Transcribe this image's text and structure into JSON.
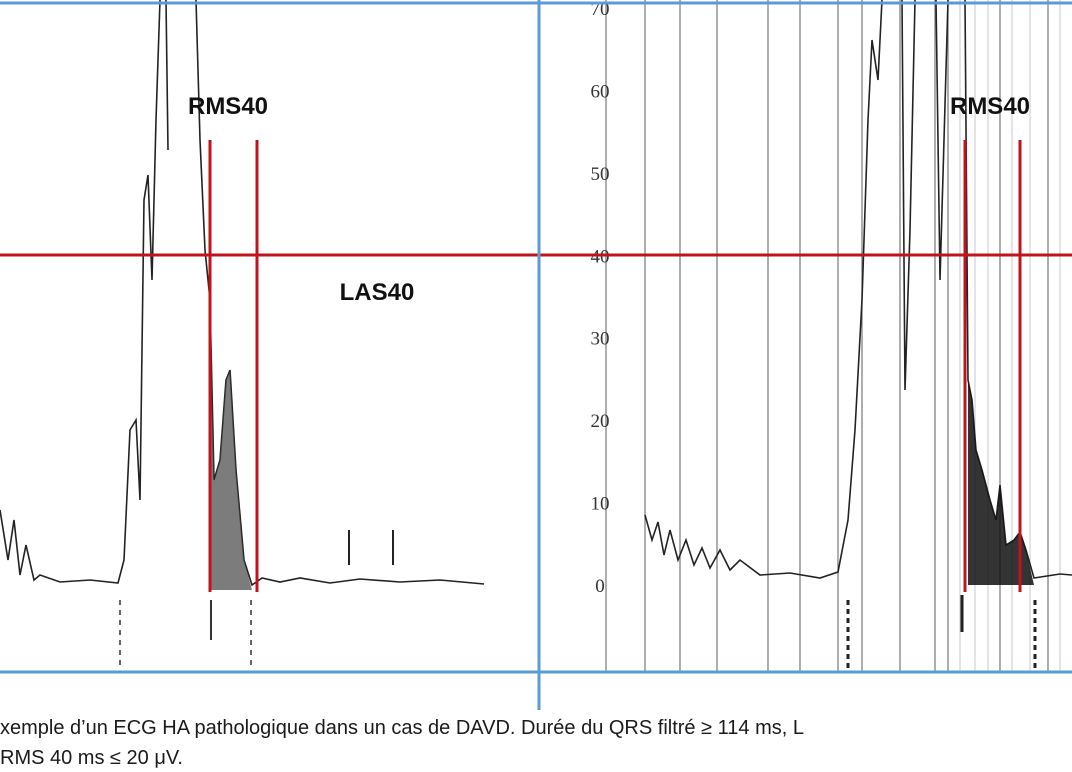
{
  "left_panel": {
    "rms_label": "RMS40",
    "las_label": "LAS40"
  },
  "right_panel": {
    "rms_label": "RMS40",
    "axis_ticks": [
      70,
      60,
      50,
      40,
      30,
      20,
      10,
      0
    ]
  },
  "caption": {
    "line1": "xemple d’un ECG HA pathologique dans un cas de DAVD. Durée du QRS filtré ≥ 114 ms, L",
    "line2": "RMS 40 ms ≤ 20 μV."
  }
}
